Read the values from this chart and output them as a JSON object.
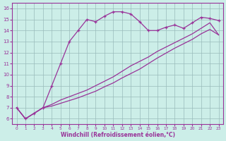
{
  "background_color": "#cceee8",
  "line_color": "#993399",
  "grid_color": "#99bbbb",
  "xlabel": "Windchill (Refroidissement éolien,°C)",
  "xlabel_color": "#993399",
  "tick_color": "#993399",
  "spine_color": "#993399",
  "ylim": [
    5.5,
    16.5
  ],
  "xlim": [
    -0.5,
    23.5
  ],
  "yticks": [
    6,
    7,
    8,
    9,
    10,
    11,
    12,
    13,
    14,
    15,
    16
  ],
  "xticks": [
    0,
    1,
    2,
    3,
    4,
    5,
    6,
    7,
    8,
    9,
    10,
    11,
    12,
    13,
    14,
    15,
    16,
    17,
    18,
    19,
    20,
    21,
    22,
    23
  ],
  "curve1_x": [
    0,
    1,
    2,
    3,
    4,
    5,
    6,
    7,
    8,
    9,
    10,
    11,
    12,
    13,
    14,
    15,
    16,
    17,
    18,
    19,
    20,
    21,
    22,
    23
  ],
  "curve1_y": [
    7.0,
    6.0,
    6.5,
    7.0,
    9.0,
    11.0,
    13.0,
    14.0,
    15.0,
    14.8,
    15.3,
    15.7,
    15.7,
    15.5,
    14.8,
    14.0,
    14.0,
    14.3,
    14.5,
    14.2,
    14.7,
    15.2,
    15.1,
    14.9
  ],
  "curve2_x": [
    0,
    1,
    2,
    3,
    4,
    5,
    6,
    7,
    8,
    9,
    10,
    11,
    12,
    13,
    14,
    15,
    16,
    17,
    18,
    19,
    20,
    21,
    22,
    23
  ],
  "curve2_y": [
    7.0,
    6.0,
    6.5,
    7.0,
    7.3,
    7.7,
    8.0,
    8.3,
    8.6,
    9.0,
    9.4,
    9.8,
    10.3,
    10.8,
    11.2,
    11.6,
    12.1,
    12.5,
    12.9,
    13.3,
    13.7,
    14.2,
    14.7,
    13.6
  ],
  "curve3_x": [
    0,
    1,
    2,
    3,
    4,
    5,
    6,
    7,
    8,
    9,
    10,
    11,
    12,
    13,
    14,
    15,
    16,
    17,
    18,
    19,
    20,
    21,
    22,
    23
  ],
  "curve3_y": [
    7.0,
    6.0,
    6.5,
    7.0,
    7.15,
    7.4,
    7.65,
    7.9,
    8.2,
    8.5,
    8.9,
    9.25,
    9.7,
    10.1,
    10.5,
    11.0,
    11.5,
    11.95,
    12.4,
    12.8,
    13.2,
    13.7,
    14.1,
    13.6
  ],
  "marker": "+"
}
